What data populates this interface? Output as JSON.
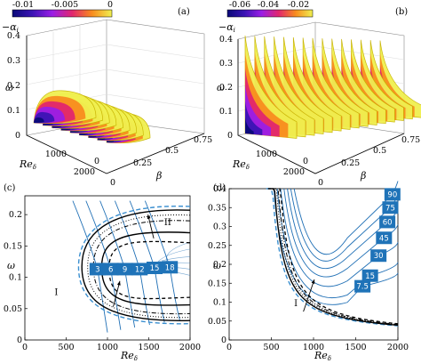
{
  "colors": {
    "map": [
      "#0a0a78",
      "#3b14b4",
      "#9a1ee6",
      "#e1266e",
      "#f88c1e",
      "#f0f050"
    ],
    "blue": "#1f6fb5",
    "box": "#1f73b8"
  },
  "chart_data": [
    {
      "panel_label": "(a)",
      "type": "area",
      "colorbar": {
        "label": "−α",
        "sub": "i",
        "ticks": [
          "-0.01",
          "-0.005",
          "0"
        ],
        "range": [
          -0.013,
          0
        ]
      },
      "xlabel": "β",
      "ylabel": "Re",
      "ylabel_sub": "δ",
      "zlabel": "ω",
      "x_ticks": [
        "0",
        "0.25",
        "0.5",
        "0.75"
      ],
      "y_ticks": [
        "0",
        "1000",
        "2000"
      ],
      "z_ticks": [
        "0",
        "0.1",
        "0.2",
        "0.3",
        "0.4"
      ],
      "slice_betas": [
        0,
        0.025,
        0.05,
        0.075,
        0.1,
        0.125,
        0.15,
        0.175,
        0.2
      ]
    },
    {
      "panel_label": "(b)",
      "type": "area",
      "colorbar": {
        "label": "−α",
        "sub": "i",
        "ticks": [
          "-0.06",
          "-0.04",
          "-0.02"
        ],
        "range": [
          -0.07,
          0
        ]
      },
      "xlabel": "β",
      "ylabel": "Re",
      "ylabel_sub": "δ",
      "zlabel": "ω",
      "x_ticks": [
        "0",
        "0.25",
        "0.5",
        "0.75"
      ],
      "y_ticks": [
        "0",
        "1000",
        "2000"
      ],
      "z_ticks": [
        "0",
        "0.1",
        "0.2",
        "0.3",
        "0.4"
      ],
      "slice_betas": [
        0,
        0.05,
        0.1,
        0.15,
        0.2,
        0.25,
        0.3,
        0.35,
        0.4,
        0.45,
        0.5,
        0.55,
        0.6,
        0.65,
        0.7
      ]
    },
    {
      "panel_label": "(c)",
      "type": "line",
      "xlabel": "Re",
      "xlabel_sub": "δ",
      "ylabel": "ω",
      "xlim": [
        0,
        2000
      ],
      "ylim": [
        0,
        0.23
      ],
      "x_ticks": [
        0,
        500,
        1000,
        1500,
        2000
      ],
      "y_ticks": [
        0,
        0.05,
        0.1,
        0.15,
        0.2
      ],
      "regions": [
        {
          "text": "I",
          "x": 380,
          "y": 0.072
        },
        {
          "text": "II",
          "x": 1730,
          "y": 0.183
        }
      ],
      "neutral_curves": [
        {
          "style": "dash-blue",
          "nose": [
            650,
            0.117
          ],
          "upper_end": [
            2000,
            0.213
          ],
          "lower_end": [
            2000,
            0.026
          ]
        },
        {
          "style": "solid-black",
          "nose": [
            690,
            0.117
          ],
          "upper_end": [
            2000,
            0.207
          ],
          "lower_end": [
            2000,
            0.031
          ]
        },
        {
          "style": "dotted",
          "nose": [
            760,
            0.117
          ],
          "upper_end": [
            2000,
            0.199
          ],
          "lower_end": [
            2000,
            0.036
          ]
        },
        {
          "style": "dashdot",
          "nose": [
            830,
            0.117
          ],
          "upper_end": [
            2000,
            0.19
          ],
          "lower_end": [
            2000,
            0.042
          ]
        },
        {
          "style": "solid-black",
          "nose": [
            930,
            0.116
          ],
          "upper_end": [
            2000,
            0.171
          ],
          "lower_end": [
            2000,
            0.056
          ]
        },
        {
          "style": "dashed",
          "nose": [
            1020,
            0.114
          ],
          "upper_end": [
            2000,
            0.155
          ],
          "lower_end": [
            2000,
            0.068
          ]
        }
      ],
      "frequency_lines": [
        {
          "label": "3",
          "x": 880,
          "y": 0.113,
          "top": 0.222,
          "bottom": 0.012
        },
        {
          "label": "6",
          "x": 1040,
          "y": 0.113,
          "top": 0.222,
          "bottom": 0.016
        },
        {
          "label": "9",
          "x": 1210,
          "y": 0.113,
          "top": 0.222,
          "bottom": 0.02
        },
        {
          "label": "12",
          "x": 1390,
          "y": 0.113,
          "top": 0.222,
          "bottom": 0.024
        },
        {
          "label": "15",
          "x": 1570,
          "y": 0.115,
          "top": 0.222,
          "bottom": 0.028
        },
        {
          "label": "18",
          "x": 1755,
          "y": 0.116,
          "top": 0.222,
          "bottom": 0.032
        }
      ],
      "arrows": [
        {
          "from": [
            1560,
            0.162
          ],
          "to": [
            1490,
            0.2
          ]
        },
        {
          "from": [
            1070,
            0.053
          ],
          "to": [
            1150,
            0.094
          ]
        }
      ]
    },
    {
      "panel_label": "(d)",
      "type": "line",
      "xlabel": "Re",
      "xlabel_sub": "δ",
      "ylabel": "ω",
      "xlim": [
        0,
        2000
      ],
      "ylim": [
        0,
        0.4
      ],
      "x_ticks": [
        0,
        500,
        1000,
        1500,
        2000
      ],
      "y_ticks": [
        0,
        0.05,
        0.1,
        0.15,
        0.2,
        0.25,
        0.3,
        0.35,
        0.4
      ],
      "regions": [
        {
          "text": "I",
          "x": 790,
          "y": 0.09
        }
      ],
      "neutral_curves": [
        {
          "style": "dash-blue",
          "x0": 420,
          "k": 44
        },
        {
          "style": "solid-black",
          "x0": 440,
          "k": 46
        },
        {
          "style": "dotted",
          "x0": 460,
          "k": 47
        },
        {
          "style": "dashdot",
          "x0": 480,
          "k": 48
        },
        {
          "style": "dashed",
          "x0": 500,
          "k": 50
        }
      ],
      "frequency_lines": [
        {
          "label": "7.5",
          "x": 1580,
          "y": 0.142
        },
        {
          "label": "15",
          "x": 1670,
          "y": 0.17
        },
        {
          "label": "30",
          "x": 1770,
          "y": 0.223
        },
        {
          "label": "45",
          "x": 1835,
          "y": 0.27
        },
        {
          "label": "60",
          "x": 1875,
          "y": 0.312
        },
        {
          "label": "75",
          "x": 1910,
          "y": 0.35
        },
        {
          "label": "90",
          "x": 1935,
          "y": 0.385
        }
      ],
      "arrows": [
        {
          "from": [
            880,
            0.075
          ],
          "to": [
            1010,
            0.16
          ]
        }
      ]
    }
  ]
}
